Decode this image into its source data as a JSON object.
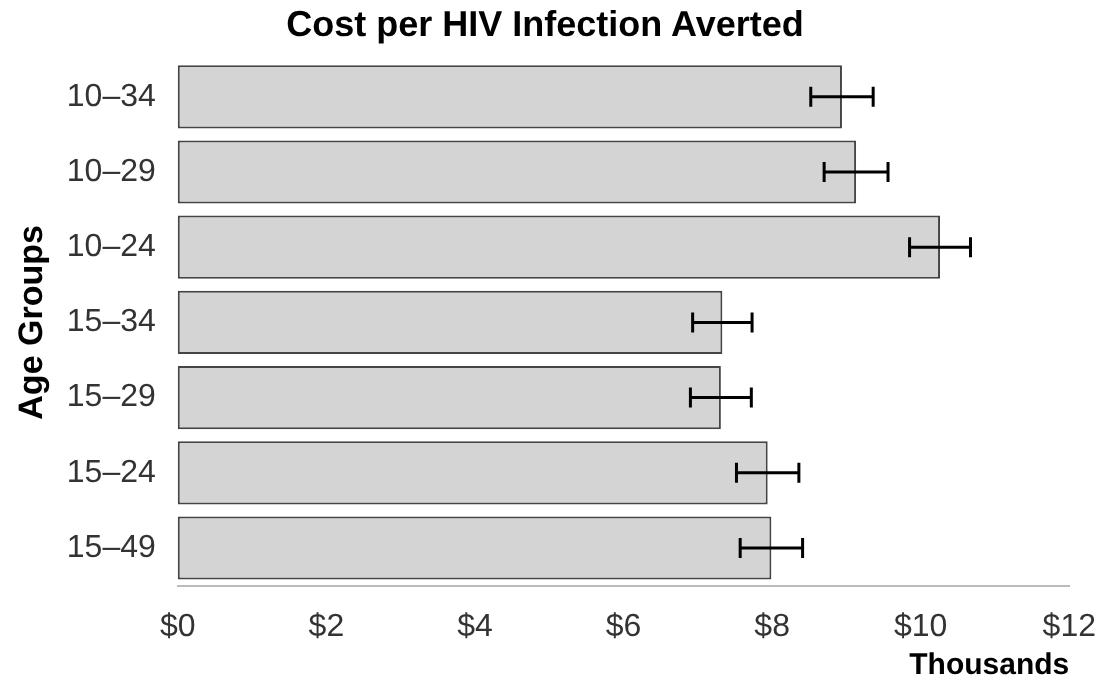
{
  "chart_data": {
    "type": "bar",
    "orientation": "horizontal",
    "title": "Cost per HIV Infection Averted",
    "ylabel": "Age Groups",
    "xlabel": "Thousands",
    "categories": [
      "10–34",
      "10–29",
      "10–24",
      "15–34",
      "15–29",
      "15–24",
      "15–49"
    ],
    "values": [
      8.94,
      9.13,
      10.26,
      7.33,
      7.31,
      7.94,
      7.99
    ],
    "errors": [
      0.42,
      0.43,
      0.41,
      0.4,
      0.41,
      0.42,
      0.42
    ],
    "color": "#d4d4d4",
    "xlim": [
      0,
      12
    ],
    "xticks": [
      {
        "value": 0,
        "label": "$0"
      },
      {
        "value": 2,
        "label": "$2"
      },
      {
        "value": 4,
        "label": "$4"
      },
      {
        "value": 6,
        "label": "$6"
      },
      {
        "value": 8,
        "label": "$8"
      },
      {
        "value": 10,
        "label": "$10"
      },
      {
        "value": 12,
        "label": "$12"
      }
    ],
    "grid": false,
    "legend": false
  }
}
